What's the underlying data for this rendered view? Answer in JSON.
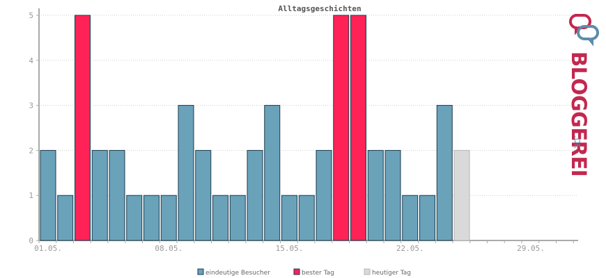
{
  "chart_data": {
    "type": "bar",
    "title": "Alltagsgeschichten",
    "xlabel": "",
    "ylabel": "",
    "ylim": [
      0,
      5
    ],
    "yticks": [
      "0",
      "1",
      "2",
      "3",
      "4",
      "5"
    ],
    "grid": true,
    "legend_position": "bottom-center",
    "days": 31,
    "x_tick_labels": [
      {
        "day": 1,
        "label": "01.05."
      },
      {
        "day": 8,
        "label": "08.05."
      },
      {
        "day": 15,
        "label": "15.05."
      },
      {
        "day": 22,
        "label": "22.05."
      },
      {
        "day": 29,
        "label": "29.05."
      }
    ],
    "series": [
      {
        "name": "eindeutige Besucher",
        "color": "#6aa2ba",
        "type": "regular"
      },
      {
        "name": "bester Tag",
        "color": "#ff2257",
        "type": "best"
      },
      {
        "name": "heutiger Tag",
        "color": "#d9d9d9",
        "type": "today"
      }
    ],
    "bars": [
      {
        "day": 1,
        "value": 2,
        "type": "regular"
      },
      {
        "day": 2,
        "value": 1,
        "type": "regular"
      },
      {
        "day": 3,
        "value": 5,
        "type": "best"
      },
      {
        "day": 4,
        "value": 2,
        "type": "regular"
      },
      {
        "day": 5,
        "value": 2,
        "type": "regular"
      },
      {
        "day": 6,
        "value": 1,
        "type": "regular"
      },
      {
        "day": 7,
        "value": 1,
        "type": "regular"
      },
      {
        "day": 8,
        "value": 1,
        "type": "regular"
      },
      {
        "day": 9,
        "value": 3,
        "type": "regular"
      },
      {
        "day": 10,
        "value": 2,
        "type": "regular"
      },
      {
        "day": 11,
        "value": 1,
        "type": "regular"
      },
      {
        "day": 12,
        "value": 1,
        "type": "regular"
      },
      {
        "day": 13,
        "value": 2,
        "type": "regular"
      },
      {
        "day": 14,
        "value": 3,
        "type": "regular"
      },
      {
        "day": 15,
        "value": 1,
        "type": "regular"
      },
      {
        "day": 16,
        "value": 1,
        "type": "regular"
      },
      {
        "day": 17,
        "value": 2,
        "type": "regular"
      },
      {
        "day": 18,
        "value": 5,
        "type": "best"
      },
      {
        "day": 19,
        "value": 5,
        "type": "best"
      },
      {
        "day": 20,
        "value": 2,
        "type": "regular"
      },
      {
        "day": 21,
        "value": 2,
        "type": "regular"
      },
      {
        "day": 22,
        "value": 1,
        "type": "regular"
      },
      {
        "day": 23,
        "value": 1,
        "type": "regular"
      },
      {
        "day": 24,
        "value": 3,
        "type": "regular"
      },
      {
        "day": 25,
        "value": 2,
        "type": "today"
      }
    ]
  },
  "logo": {
    "text": "BLOGGEREI",
    "suffix": ".DE"
  },
  "colors": {
    "axis": "#aaaaaa",
    "grid": "#cccccc",
    "bar_stroke": "#1b3a4b",
    "today_stroke": "#b5b5b5",
    "logo_red": "#c2284f",
    "logo_blue": "#5c8cab"
  }
}
